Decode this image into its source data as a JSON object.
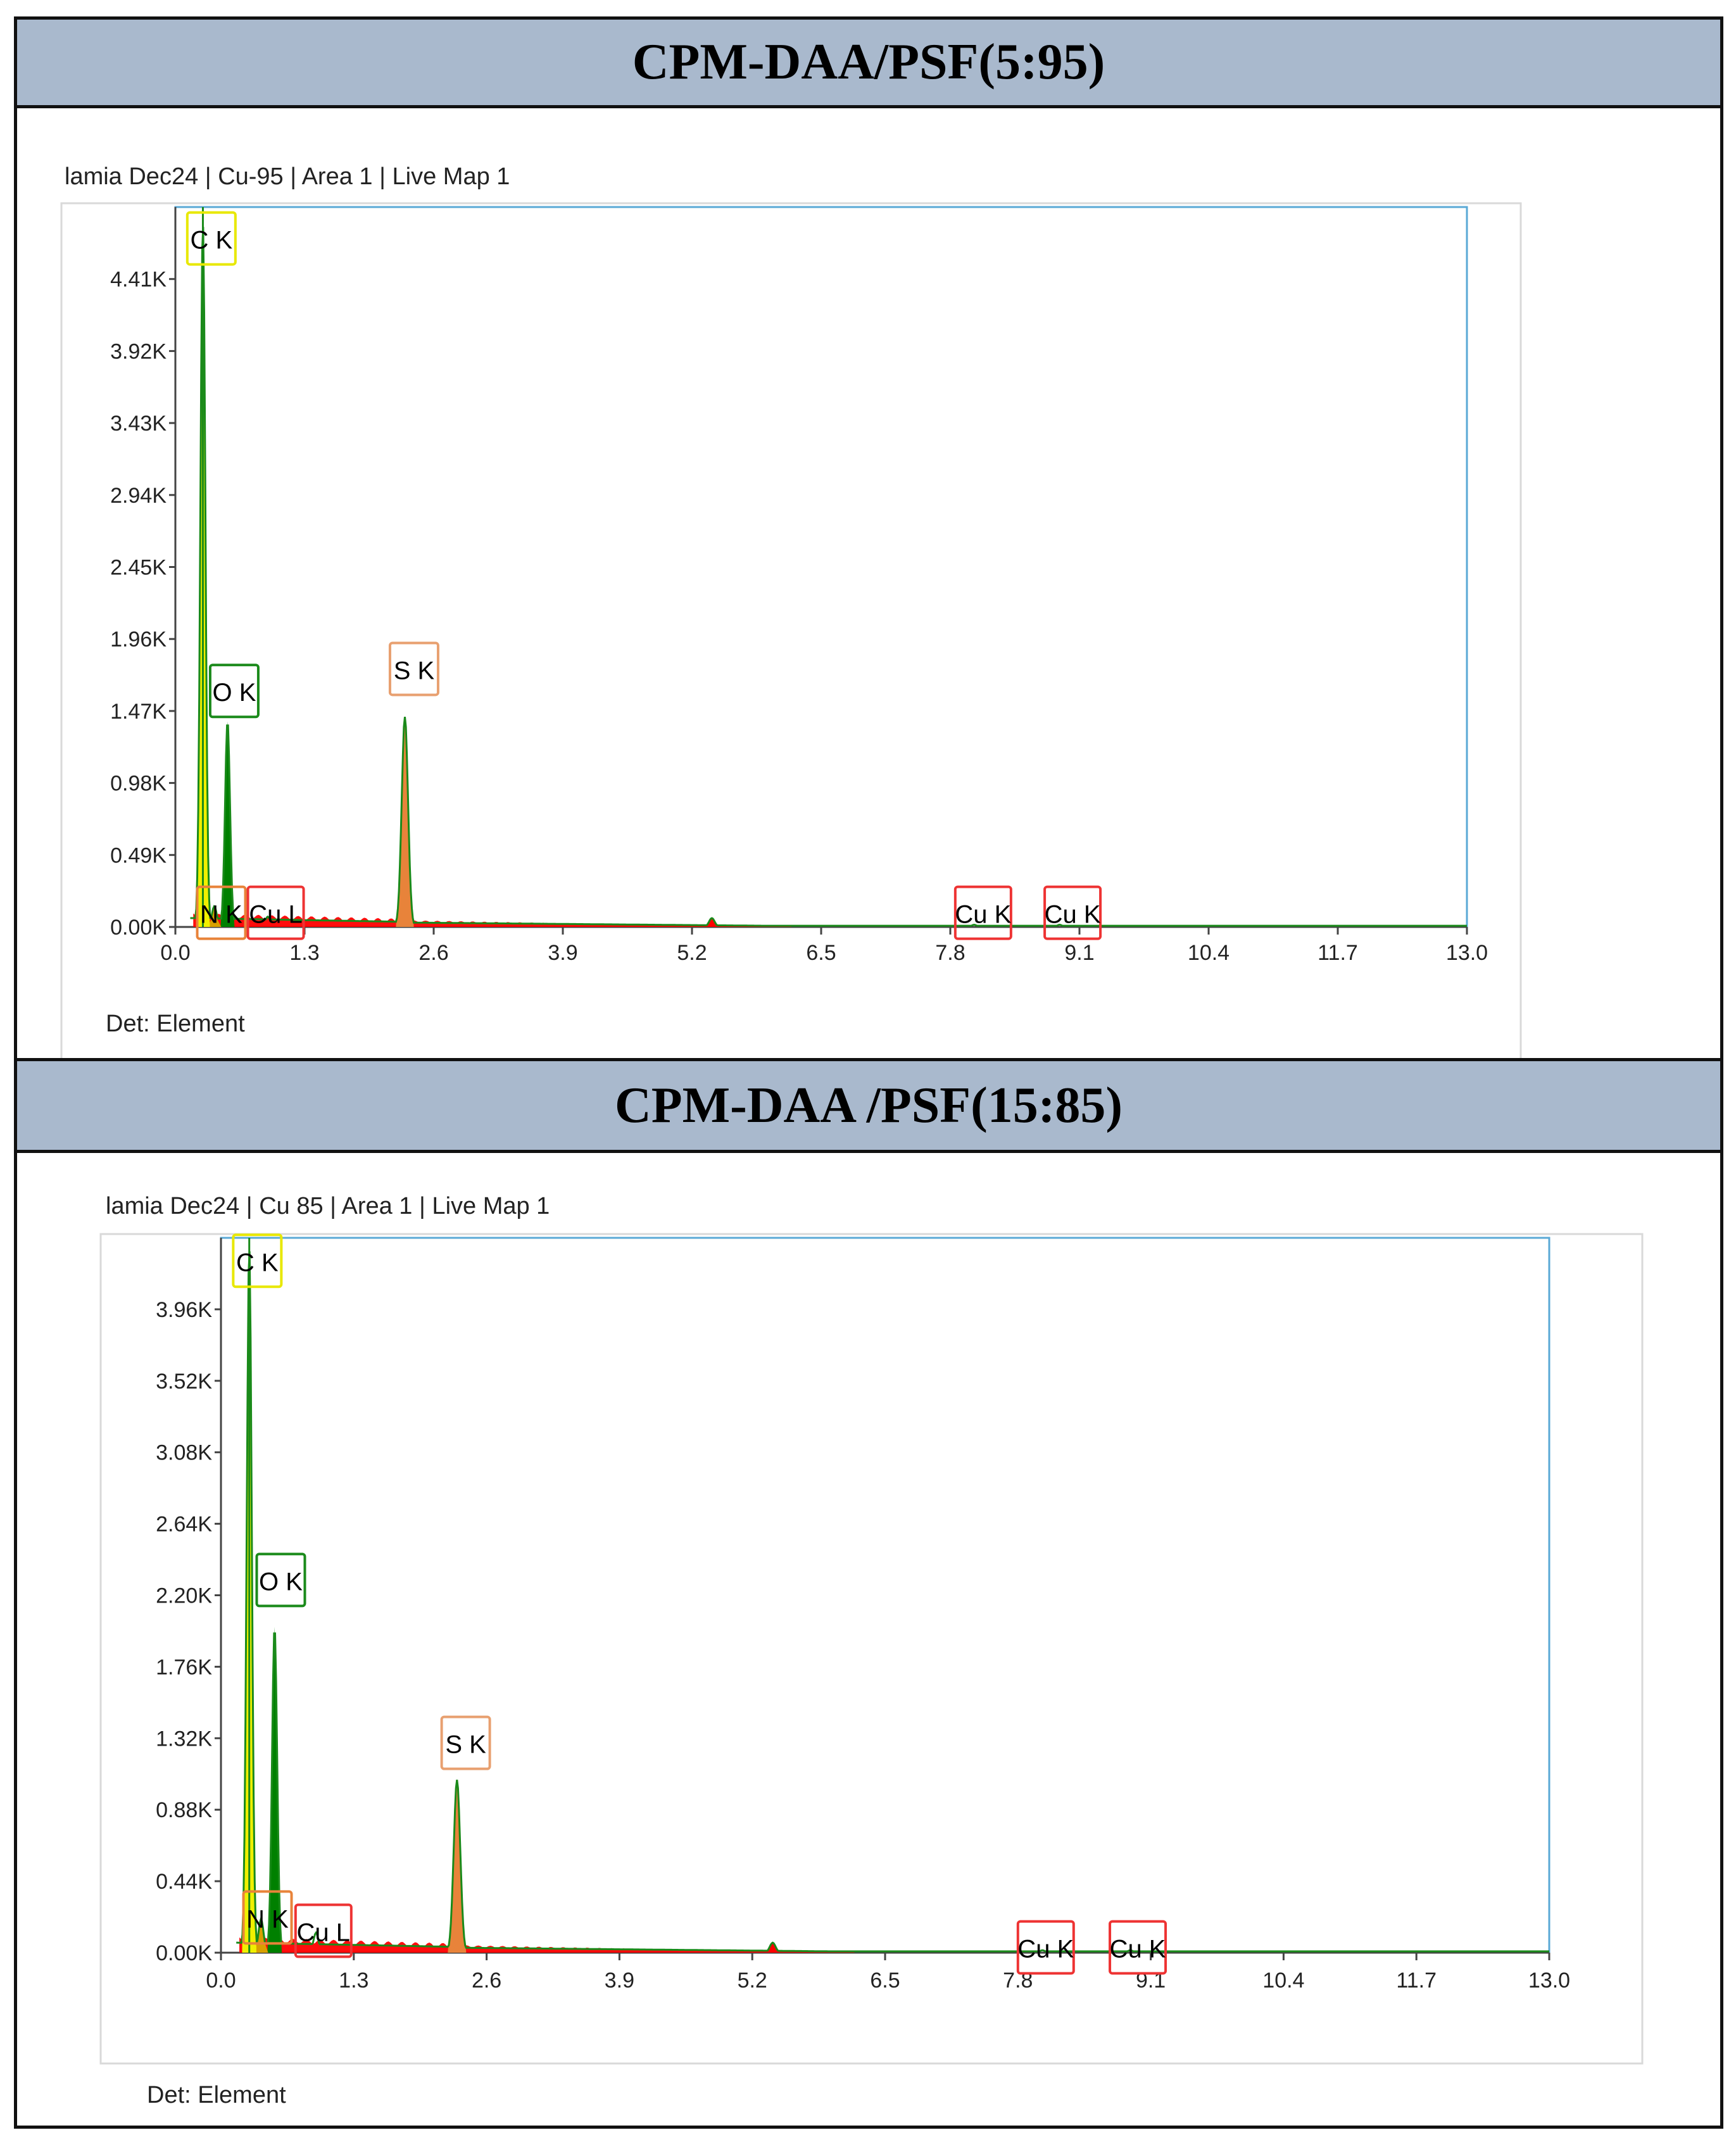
{
  "chart_data": [
    {
      "type": "line",
      "title": "CPM-DAA/PSF(5:95)",
      "subtitle": "lamia Dec24 | Cu-95 | Area 1 | Live Map 1",
      "footer": "Det: Element",
      "xlim": [
        0.0,
        13.0
      ],
      "ylim": [
        0,
        4900
      ],
      "xticks": [
        "0.0",
        "1.3",
        "2.6",
        "3.9",
        "5.2",
        "6.5",
        "7.8",
        "9.1",
        "10.4",
        "11.7",
        "13.0"
      ],
      "yticks": [
        "0.00K",
        "0.49K",
        "0.98K",
        "1.47K",
        "1.96K",
        "2.45K",
        "2.94K",
        "3.43K",
        "3.92K",
        "4.41K"
      ],
      "colors": {
        "C": "#f0f000",
        "N": "#d8a000",
        "O": "#008000",
        "S": "#e8833a",
        "Cu": "#ff0000",
        "total": "#1a8a1a"
      },
      "peaks": [
        {
          "element": "C",
          "label": "C K",
          "x": 0.277,
          "y": 4800,
          "color": "#f0f000"
        },
        {
          "element": "N",
          "label": "N K",
          "x": 0.392,
          "y": 140,
          "color": "#d8a000"
        },
        {
          "element": "O",
          "label": "O K",
          "x": 0.525,
          "y": 1400,
          "color": "#008000"
        },
        {
          "element": "Cu",
          "label": "Cu L",
          "x": 0.93,
          "y": 70,
          "color": "#ff0000"
        },
        {
          "element": "S",
          "label": "S K",
          "x": 2.31,
          "y": 1430,
          "color": "#e8833a"
        },
        {
          "element": "Cu",
          "label": "Cu K",
          "x": 8.04,
          "y": 15,
          "color": "#ff0000"
        },
        {
          "element": "Cu",
          "label": "Cu K",
          "x": 8.9,
          "y": 15,
          "color": "#ff0000"
        }
      ],
      "extra_bumps": [
        {
          "x": 5.4,
          "y": 60
        }
      ]
    },
    {
      "type": "line",
      "title": "CPM-DAA /PSF(15:85)",
      "subtitle": "lamia Dec24 | Cu 85 | Area 1 | Live Map 1",
      "footer": "Det: Element",
      "xlim": [
        0.0,
        13.0
      ],
      "ylim": [
        0,
        4300
      ],
      "xticks": [
        "0.0",
        "1.3",
        "2.6",
        "3.9",
        "5.2",
        "6.5",
        "7.8",
        "9.1",
        "10.4",
        "11.7",
        "13.0"
      ],
      "yticks": [
        "0.00K",
        "0.44K",
        "0.88K",
        "1.32K",
        "1.76K",
        "2.20K",
        "2.64K",
        "3.08K",
        "3.52K",
        "3.96K"
      ],
      "colors": {
        "C": "#f0f000",
        "N": "#d8a000",
        "O": "#008000",
        "S": "#e8833a",
        "Cu": "#ff0000",
        "total": "#1a8a1a"
      },
      "peaks": [
        {
          "element": "C",
          "label": "C K",
          "x": 0.277,
          "y": 4250,
          "color": "#f0f000"
        },
        {
          "element": "N",
          "label": "N K",
          "x": 0.392,
          "y": 200,
          "color": "#d8a000"
        },
        {
          "element": "O",
          "label": "O K",
          "x": 0.525,
          "y": 1960,
          "color": "#008000"
        },
        {
          "element": "Cu",
          "label": "Cu L",
          "x": 0.93,
          "y": 120,
          "color": "#ff0000"
        },
        {
          "element": "S",
          "label": "S K",
          "x": 2.31,
          "y": 1040,
          "color": "#e8833a"
        },
        {
          "element": "Cu",
          "label": "Cu K",
          "x": 8.04,
          "y": 15,
          "color": "#ff0000"
        },
        {
          "element": "Cu",
          "label": "Cu K",
          "x": 8.9,
          "y": 15,
          "color": "#ff0000"
        }
      ],
      "extra_bumps": [
        {
          "x": 5.4,
          "y": 60
        }
      ]
    }
  ]
}
